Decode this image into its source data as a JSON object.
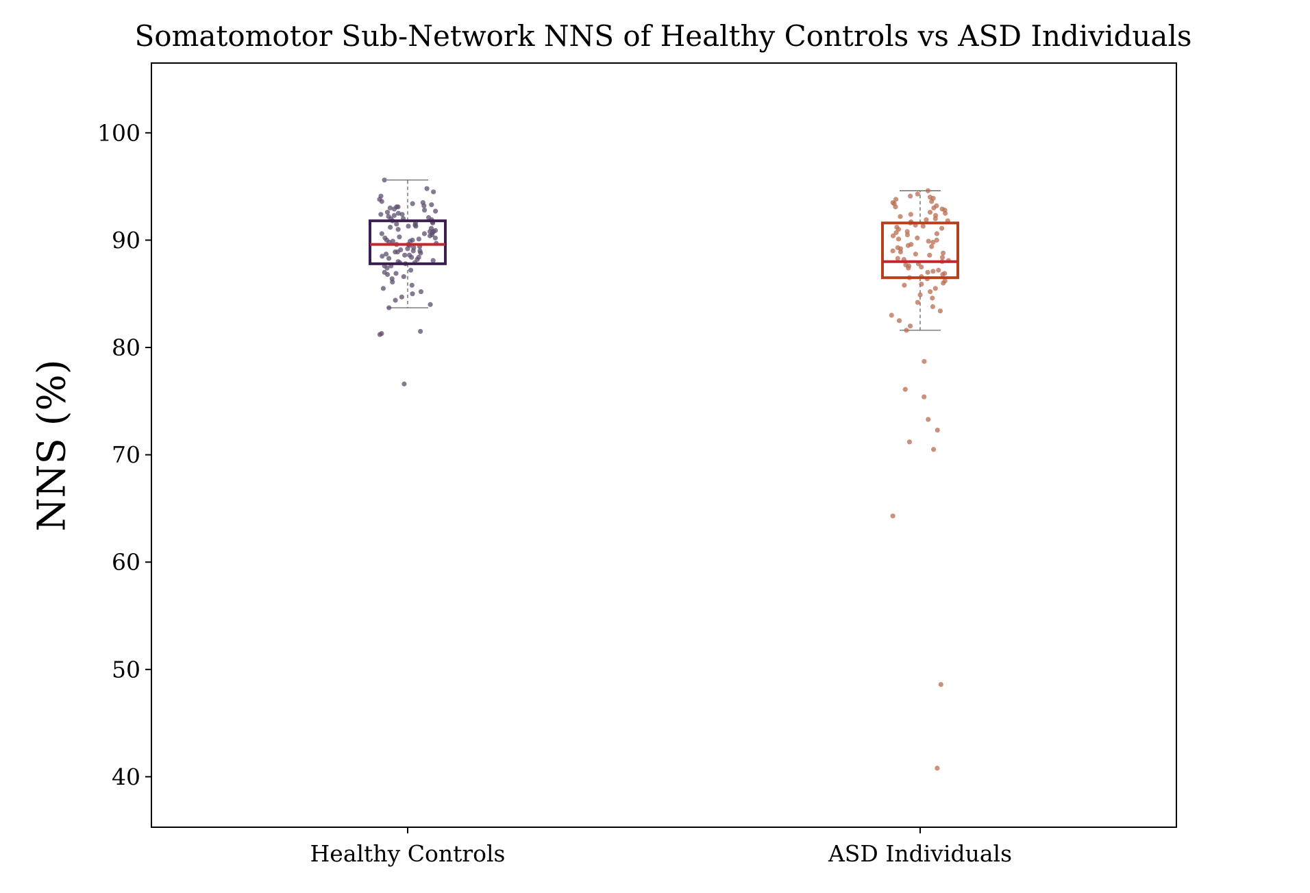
{
  "chart_data": {
    "type": "box",
    "title": "Somatomotor Sub-Network NNS of Healthy Controls vs ASD Individuals",
    "xlabel": "",
    "ylabel": "NNS (%)",
    "ylim": [
      35.3,
      106.5
    ],
    "yticks": [
      40,
      50,
      60,
      70,
      80,
      90,
      100
    ],
    "grid": false,
    "categories": [
      "Healthy Controls",
      "ASD Individuals"
    ],
    "series": [
      {
        "category": "Healthy Controls",
        "box_color": "#3b1f4e",
        "point_color": "#5d4d6e",
        "median_color": "#c0282d",
        "whisker_low": 83.7,
        "q1": 87.8,
        "median": 89.6,
        "q3": 91.8,
        "whisker_high": 95.6,
        "outliers": [
          81.5,
          81.3,
          81.2,
          76.6
        ],
        "points": [
          95.6,
          94.8,
          94.5,
          94.1,
          93.8,
          93.6,
          93.5,
          93.4,
          93.3,
          93.2,
          93.1,
          93.0,
          92.9,
          92.8,
          92.7,
          92.6,
          92.5,
          92.4,
          92.3,
          92.2,
          92.1,
          92.0,
          91.9,
          91.8,
          91.7,
          91.6,
          91.5,
          91.4,
          91.3,
          91.2,
          91.1,
          91.0,
          90.9,
          90.8,
          90.7,
          90.6,
          90.5,
          90.4,
          90.3,
          90.2,
          90.1,
          90.0,
          89.9,
          89.8,
          89.7,
          89.6,
          89.5,
          89.4,
          89.3,
          89.2,
          89.1,
          89.0,
          88.9,
          88.8,
          88.7,
          88.6,
          88.5,
          88.4,
          88.3,
          88.2,
          88.1,
          88.0,
          87.9,
          87.8,
          87.6,
          87.4,
          87.2,
          87.0,
          86.8,
          86.6,
          86.4,
          86.1,
          85.8,
          85.5,
          85.2,
          85.0,
          84.7,
          84.4,
          84.0,
          83.7,
          92.4,
          91.6,
          90.8,
          90.2,
          89.6,
          89.0,
          88.4,
          87.6,
          93.1,
          92.0,
          90.6,
          89.9,
          88.9,
          87.9,
          86.9,
          91.3,
          90.0,
          88.6
        ]
      },
      {
        "category": "ASD Individuals",
        "box_color": "#b5401e",
        "point_color": "#b86d52",
        "median_color": "#c0282d",
        "whisker_low": 81.6,
        "q1": 86.5,
        "median": 88.0,
        "q3": 91.6,
        "whisker_high": 94.6,
        "outliers": [
          78.7,
          76.1,
          75.4,
          73.3,
          72.3,
          71.2,
          70.5,
          64.3,
          48.6,
          40.8
        ],
        "points": [
          94.6,
          94.3,
          94.0,
          93.8,
          93.6,
          93.4,
          93.2,
          93.0,
          92.8,
          92.6,
          92.4,
          92.2,
          92.0,
          91.8,
          91.6,
          91.4,
          91.2,
          91.0,
          90.8,
          90.6,
          90.4,
          90.2,
          90.0,
          89.8,
          89.6,
          89.4,
          89.2,
          89.0,
          88.8,
          88.6,
          88.4,
          88.2,
          88.0,
          87.8,
          87.6,
          87.4,
          87.2,
          87.0,
          86.8,
          86.6,
          86.4,
          86.2,
          86.0,
          85.8,
          85.5,
          85.2,
          84.9,
          84.6,
          84.2,
          83.8,
          83.4,
          83.0,
          82.5,
          82.0,
          81.6,
          93.9,
          93.1,
          92.5,
          91.9,
          91.3,
          90.7,
          90.1,
          89.5,
          88.9,
          88.3,
          87.7,
          87.1,
          86.5,
          85.9,
          94.1,
          92.9,
          91.7,
          90.5,
          89.3,
          88.1,
          86.9,
          93.5,
          92.3,
          91.1,
          89.9,
          88.7,
          87.5
        ]
      }
    ]
  }
}
